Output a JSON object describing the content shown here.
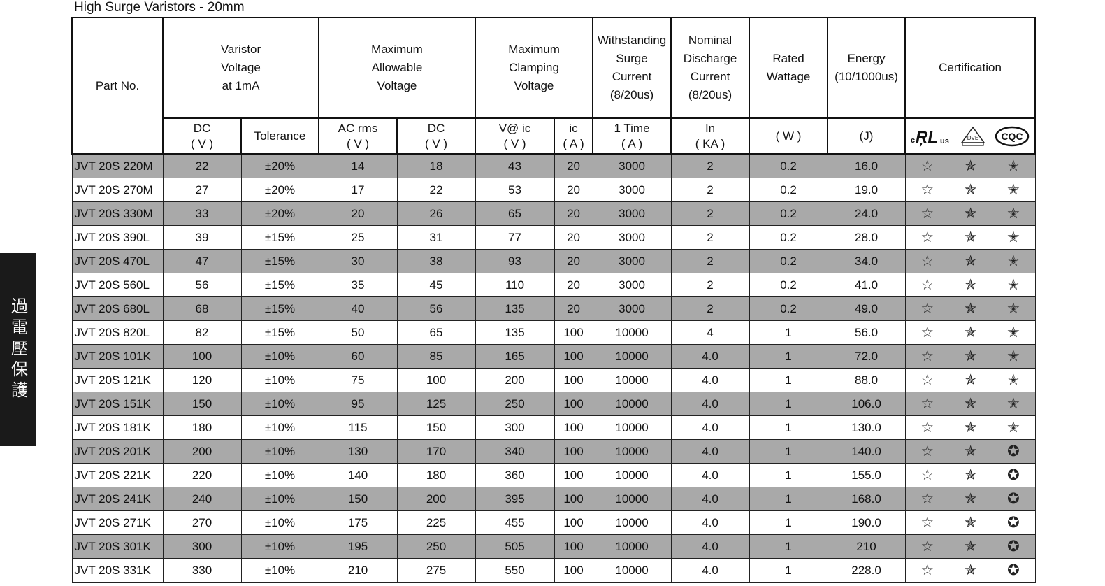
{
  "title": "High Surge Varistors - 20mm",
  "side_tab": "過電壓保護",
  "header": {
    "part_no": "Part No.",
    "varistor_voltage": "Varistor\nVoltage\nat 1mA",
    "max_allowable_voltage": "Maximum\nAllowable\nVoltage",
    "max_clamping_voltage": "Maximum\nClamping\nVoltage",
    "withstanding_surge": "Withstanding\nSurge\nCurrent\n(8/20us)",
    "nominal_discharge": "Nominal\nDischarge\nCurrent\n(8/20us)",
    "rated_wattage": "Rated\nWattage",
    "energy": "Energy\n(10/1000us)",
    "certification": "Certification",
    "sub": {
      "dc": "DC\n( V )",
      "tolerance": "Tolerance",
      "ac_rms": "AC rms\n( V )",
      "dc2": "DC\n( V )",
      "v_at_ic": "V@ ic\n( V )",
      "ic": "ic\n( A )",
      "one_time": "1 Time\n( A )",
      "in_ka": "In\n( KA )",
      "w": "( W )",
      "j": "(J)"
    },
    "cert_logos": [
      "ul-logo",
      "vde-logo",
      "cqc-logo"
    ]
  },
  "rows": [
    {
      "part": "JVT 20S  220M",
      "dc": "22",
      "tol": "±20%",
      "ac": "14",
      "dcv": "18",
      "vic": "43",
      "ic": "20",
      "surge": "3000",
      "in": "2",
      "w": "0.2",
      "j": "16.0",
      "cqc": "outline"
    },
    {
      "part": "JVT 20S  270M",
      "dc": "27",
      "tol": "±20%",
      "ac": "17",
      "dcv": "22",
      "vic": "53",
      "ic": "20",
      "surge": "3000",
      "in": "2",
      "w": "0.2",
      "j": "19.0",
      "cqc": "outline"
    },
    {
      "part": "JVT 20S  330M",
      "dc": "33",
      "tol": "±20%",
      "ac": "20",
      "dcv": "26",
      "vic": "65",
      "ic": "20",
      "surge": "3000",
      "in": "2",
      "w": "0.2",
      "j": "24.0",
      "cqc": "outline"
    },
    {
      "part": "JVT 20S  390L",
      "dc": "39",
      "tol": "±15%",
      "ac": "25",
      "dcv": "31",
      "vic": "77",
      "ic": "20",
      "surge": "3000",
      "in": "2",
      "w": "0.2",
      "j": "28.0",
      "cqc": "outline"
    },
    {
      "part": "JVT 20S  470L",
      "dc": "47",
      "tol": "±15%",
      "ac": "30",
      "dcv": "38",
      "vic": "93",
      "ic": "20",
      "surge": "3000",
      "in": "2",
      "w": "0.2",
      "j": "34.0",
      "cqc": "outline"
    },
    {
      "part": "JVT 20S  560L",
      "dc": "56",
      "tol": "±15%",
      "ac": "35",
      "dcv": "45",
      "vic": "110",
      "ic": "20",
      "surge": "3000",
      "in": "2",
      "w": "0.2",
      "j": "41.0",
      "cqc": "outline"
    },
    {
      "part": "JVT 20S  680L",
      "dc": "68",
      "tol": "±15%",
      "ac": "40",
      "dcv": "56",
      "vic": "135",
      "ic": "20",
      "surge": "3000",
      "in": "2",
      "w": "0.2",
      "j": "49.0",
      "cqc": "outline"
    },
    {
      "part": "JVT 20S  820L",
      "dc": "82",
      "tol": "±15%",
      "ac": "50",
      "dcv": "65",
      "vic": "135",
      "ic": "100",
      "surge": "10000",
      "in": "4",
      "w": "1",
      "j": "56.0",
      "cqc": "outline"
    },
    {
      "part": "JVT 20S  101K",
      "dc": "100",
      "tol": "±10%",
      "ac": "60",
      "dcv": "85",
      "vic": "165",
      "ic": "100",
      "surge": "10000",
      "in": "4.0",
      "w": "1",
      "j": "72.0",
      "cqc": "outline"
    },
    {
      "part": "JVT 20S  121K",
      "dc": "120",
      "tol": "±10%",
      "ac": "75",
      "dcv": "100",
      "vic": "200",
      "ic": "100",
      "surge": "10000",
      "in": "4.0",
      "w": "1",
      "j": "88.0",
      "cqc": "outline"
    },
    {
      "part": "JVT 20S  151K",
      "dc": "150",
      "tol": "±10%",
      "ac": "95",
      "dcv": "125",
      "vic": "250",
      "ic": "100",
      "surge": "10000",
      "in": "4.0",
      "w": "1",
      "j": "106.0",
      "cqc": "outline"
    },
    {
      "part": "JVT 20S  181K",
      "dc": "180",
      "tol": "±10%",
      "ac": "115",
      "dcv": "150",
      "vic": "300",
      "ic": "100",
      "surge": "10000",
      "in": "4.0",
      "w": "1",
      "j": "130.0",
      "cqc": "outline"
    },
    {
      "part": "JVT 20S  201K",
      "dc": "200",
      "tol": "±10%",
      "ac": "130",
      "dcv": "170",
      "vic": "340",
      "ic": "100",
      "surge": "10000",
      "in": "4.0",
      "w": "1",
      "j": "140.0",
      "cqc": "solid"
    },
    {
      "part": "JVT 20S  221K",
      "dc": "220",
      "tol": "±10%",
      "ac": "140",
      "dcv": "180",
      "vic": "360",
      "ic": "100",
      "surge": "10000",
      "in": "4.0",
      "w": "1",
      "j": "155.0",
      "cqc": "solid"
    },
    {
      "part": "JVT 20S  241K",
      "dc": "240",
      "tol": "±10%",
      "ac": "150",
      "dcv": "200",
      "vic": "395",
      "ic": "100",
      "surge": "10000",
      "in": "4.0",
      "w": "1",
      "j": "168.0",
      "cqc": "solid"
    },
    {
      "part": "JVT 20S  271K",
      "dc": "270",
      "tol": "±10%",
      "ac": "175",
      "dcv": "225",
      "vic": "455",
      "ic": "100",
      "surge": "10000",
      "in": "4.0",
      "w": "1",
      "j": "190.0",
      "cqc": "solid"
    },
    {
      "part": "JVT 20S  301K",
      "dc": "300",
      "tol": "±10%",
      "ac": "195",
      "dcv": "250",
      "vic": "505",
      "ic": "100",
      "surge": "10000",
      "in": "4.0",
      "w": "1",
      "j": "210",
      "cqc": "solid"
    },
    {
      "part": "JVT 20S  331K",
      "dc": "330",
      "tol": "±10%",
      "ac": "210",
      "dcv": "275",
      "vic": "550",
      "ic": "100",
      "surge": "10000",
      "in": "4.0",
      "w": "1",
      "j": "228.0",
      "cqc": "solid"
    }
  ],
  "colors": {
    "shade": "#a9a9a9",
    "side_tab": "#1a1a1a"
  }
}
